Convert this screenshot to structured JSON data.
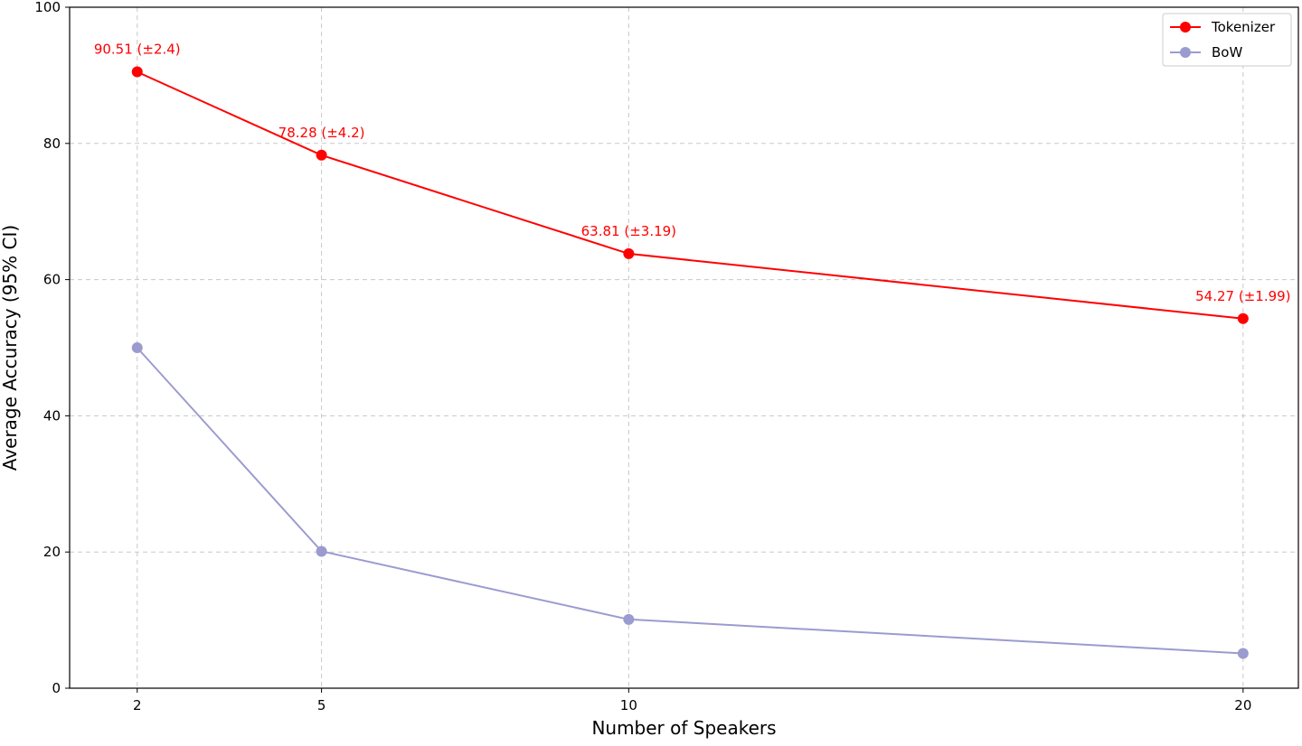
{
  "chart_data": {
    "type": "line",
    "xlabel": "Number of Speakers",
    "ylabel": "Average Accuracy (95% CI)",
    "x": [
      2,
      5,
      10,
      20
    ],
    "x_ticks": [
      "2",
      "5",
      "10",
      "20"
    ],
    "y_ticks": [
      "0",
      "20",
      "40",
      "60",
      "80",
      "100"
    ],
    "ylim": [
      0,
      100
    ],
    "xlim": [
      0.9,
      20.9
    ],
    "grid": true,
    "grid_style": "dashed",
    "legend_position": "top-right",
    "series": [
      {
        "name": "Tokenizer",
        "color": "#ff0000",
        "values": [
          90.51,
          78.28,
          63.81,
          54.27
        ],
        "labels": [
          "90.51 (±2.4)",
          "78.28 (±4.2)",
          "63.81 (±3.19)",
          "54.27 (±1.99)"
        ]
      },
      {
        "name": "BoW",
        "color": "#9b9bd0",
        "values": [
          50,
          20.1,
          10.1,
          5.1
        ]
      }
    ]
  }
}
